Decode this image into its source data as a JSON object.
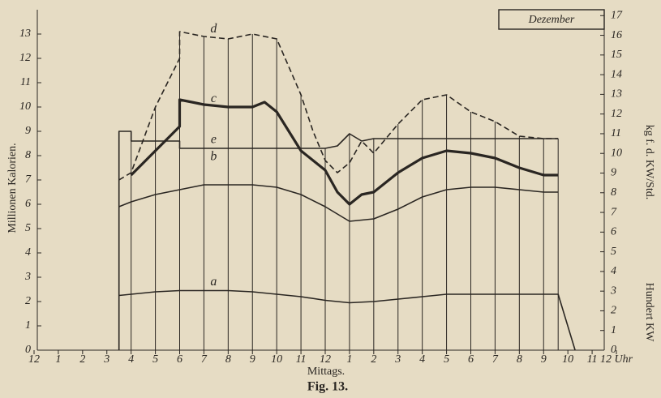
{
  "chart_data": {
    "type": "line",
    "caption": "Fig. 13.",
    "legend_text": "Dezember",
    "x_label": "Mittags.",
    "y_label": "Millionen Kalorien.",
    "y2_labels": [
      "kg f. d. KW/Std.",
      "Hundert KW"
    ],
    "xlim": [
      0,
      24
    ],
    "xticks": [
      {
        "value": 0,
        "label": "12"
      },
      1,
      2,
      3,
      4,
      5,
      6,
      7,
      8,
      9,
      10,
      11,
      12,
      {
        "value": 13,
        "label": "1"
      },
      {
        "value": 14,
        "label": "2"
      },
      {
        "value": 15,
        "label": "3"
      },
      {
        "value": 16,
        "label": "4"
      },
      {
        "value": 17,
        "label": "5"
      },
      {
        "value": 18,
        "label": "6"
      },
      {
        "value": 19,
        "label": "7"
      },
      {
        "value": 20,
        "label": "8"
      },
      {
        "value": 21,
        "label": "9"
      },
      {
        "value": 22,
        "label": "10"
      },
      {
        "value": 23,
        "label": "11"
      },
      {
        "value": 24,
        "label": "12 Uhr"
      }
    ],
    "ylim": [
      0,
      14
    ],
    "yticks": [
      0,
      1,
      2,
      3,
      4,
      5,
      6,
      7,
      8,
      9,
      10,
      11,
      12,
      13
    ],
    "y2lim": [
      0,
      17.3
    ],
    "y2ticks": [
      0,
      1,
      2,
      3,
      4,
      5,
      6,
      7,
      8,
      9,
      10,
      11,
      12,
      13,
      14,
      15,
      16,
      17
    ],
    "series": [
      {
        "name": "a",
        "color": "#2a2622",
        "width": 1.6,
        "dashed": false,
        "x": [
          3.5,
          4,
          5,
          6,
          7,
          8,
          9,
          10,
          11,
          12,
          13,
          14,
          15,
          16,
          17,
          18,
          19,
          20,
          21,
          21.6,
          22.3
        ],
        "values": [
          2.25,
          2.3,
          2.4,
          2.45,
          2.45,
          2.45,
          2.4,
          2.3,
          2.2,
          2.05,
          1.95,
          2.0,
          2.1,
          2.2,
          2.3,
          2.3,
          2.3,
          2.3,
          2.3,
          2.3,
          0
        ]
      },
      {
        "name": "b",
        "color": "#2a2622",
        "width": 1.6,
        "dashed": false,
        "x": [
          3.5,
          4,
          5,
          6,
          7,
          8,
          9,
          10,
          11,
          12,
          13,
          14,
          15,
          16,
          17,
          18,
          19,
          20,
          21,
          21.6
        ],
        "values": [
          5.9,
          6.1,
          6.4,
          6.6,
          6.8,
          6.8,
          6.8,
          6.7,
          6.4,
          5.9,
          5.3,
          5.4,
          5.8,
          6.3,
          6.6,
          6.7,
          6.7,
          6.6,
          6.5,
          6.5
        ]
      },
      {
        "name": "c",
        "color": "#2a2622",
        "width": 3.2,
        "dashed": false,
        "x": [
          4,
          5,
          6,
          6,
          7,
          8,
          9,
          9.5,
          10,
          11,
          12,
          12.5,
          13,
          13.5,
          14,
          15,
          16,
          17,
          18,
          19,
          20,
          21,
          21.6
        ],
        "values": [
          7.2,
          8.2,
          9.2,
          10.3,
          10.1,
          10.0,
          10.0,
          10.2,
          9.8,
          8.2,
          7.4,
          6.5,
          6.0,
          6.4,
          6.5,
          7.3,
          7.9,
          8.2,
          8.1,
          7.9,
          7.5,
          7.2,
          7.2
        ]
      },
      {
        "name": "d",
        "color": "#2a2622",
        "width": 1.6,
        "dashed": true,
        "x": [
          3.5,
          4,
          5,
          6,
          6,
          7,
          8,
          9,
          10,
          11,
          11.5,
          12,
          12.5,
          13,
          13.5,
          14,
          15,
          16,
          17,
          18,
          19,
          20,
          21,
          21.6
        ],
        "values": [
          7.0,
          7.3,
          10.0,
          12.0,
          13.1,
          12.9,
          12.8,
          13.0,
          12.8,
          10.5,
          9.0,
          7.8,
          7.3,
          7.7,
          8.6,
          8.1,
          9.3,
          10.3,
          10.5,
          9.8,
          9.4,
          8.8,
          8.7,
          8.7
        ]
      },
      {
        "name": "e",
        "color": "#2a2622",
        "width": 1.6,
        "dashed": false,
        "x": [
          3.5,
          3.5,
          4,
          4,
          6,
          6,
          12,
          12.5,
          13,
          13.5,
          14,
          21.6
        ],
        "values": [
          0,
          9.0,
          9.0,
          8.6,
          8.6,
          8.3,
          8.3,
          8.4,
          8.9,
          8.6,
          8.7,
          8.7
        ]
      }
    ]
  }
}
